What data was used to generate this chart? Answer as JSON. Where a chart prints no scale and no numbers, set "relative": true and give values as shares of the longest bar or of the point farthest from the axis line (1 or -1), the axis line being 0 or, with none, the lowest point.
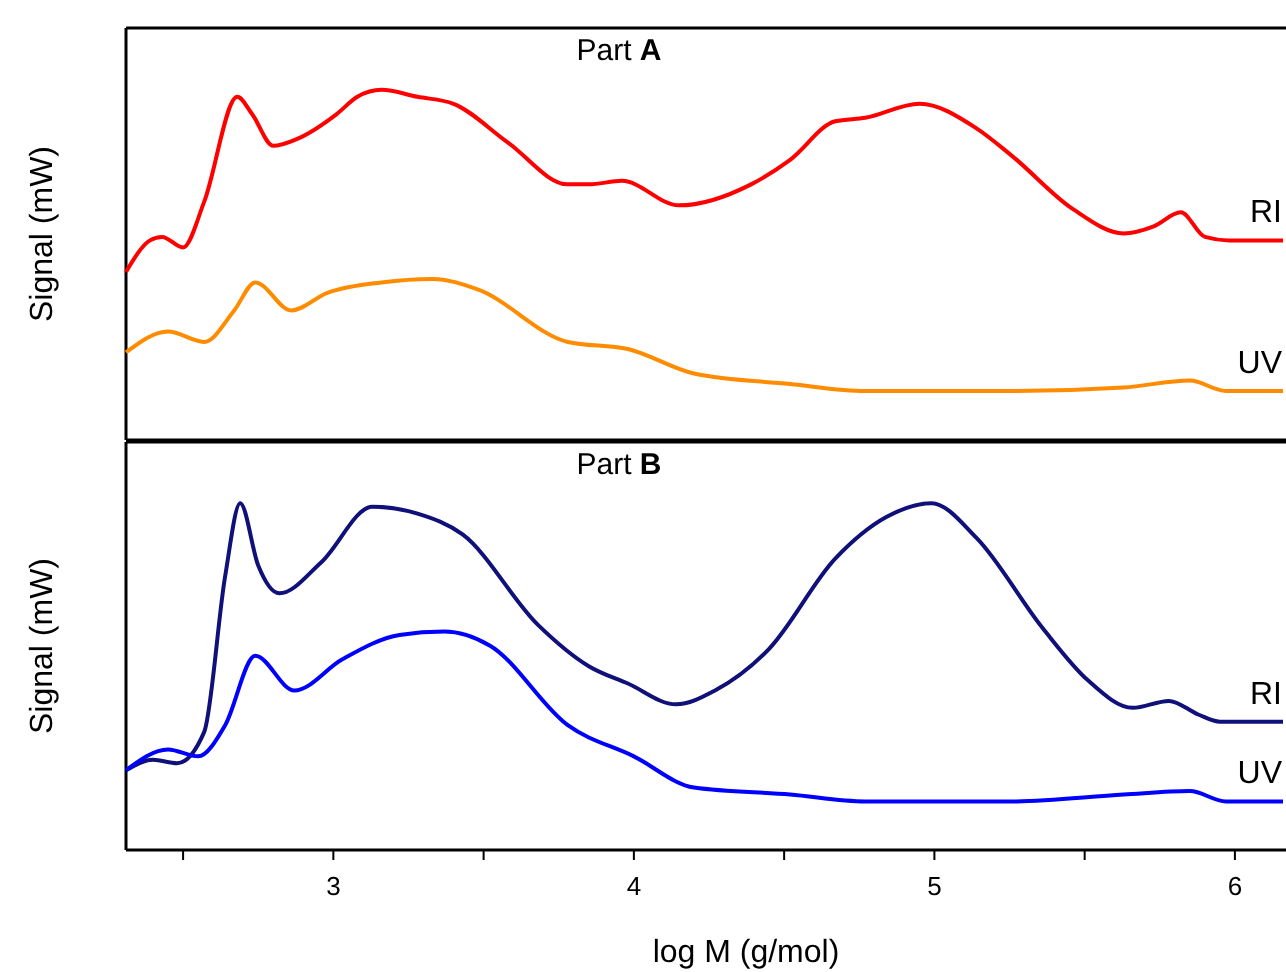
{
  "chart_data": [
    {
      "type": "line",
      "title": "Part A",
      "ylabel": "Signal (mW)",
      "relative": true,
      "xlim": [
        2.31,
        6.17
      ],
      "tick_labels": false,
      "series": [
        {
          "name": "RI",
          "color": "#ff0000",
          "x": [
            2.31,
            2.39,
            2.43,
            2.5,
            2.57,
            2.68,
            2.73,
            2.8,
            2.88,
            3.01,
            3.08,
            3.16,
            3.28,
            3.4,
            3.58,
            3.78,
            3.85,
            3.96,
            4.15,
            4.39,
            4.52,
            4.67,
            4.77,
            4.95,
            5.14,
            5.26,
            5.46,
            5.63,
            5.73,
            5.82,
            5.9,
            5.98,
            6.16
          ],
          "values": [
            0.48,
            0.57,
            0.58,
            0.55,
            0.68,
            0.98,
            0.93,
            0.84,
            0.86,
            0.93,
            0.98,
            1,
            0.98,
            0.96,
            0.85,
            0.73,
            0.73,
            0.74,
            0.67,
            0.73,
            0.8,
            0.91,
            0.92,
            0.96,
            0.89,
            0.81,
            0.66,
            0.59,
            0.61,
            0.65,
            0.58,
            0.57,
            0.57
          ]
        },
        {
          "name": "UV",
          "color": "#ff8c00",
          "x": [
            2.31,
            2.45,
            2.57,
            2.67,
            2.74,
            2.86,
            2.98,
            3.16,
            3.33,
            3.48,
            3.78,
            3.98,
            4.2,
            4.52,
            4.77,
            5.26,
            5.63,
            5.85,
            5.97,
            6.16
          ],
          "values": [
            0.25,
            0.31,
            0.28,
            0.37,
            0.45,
            0.37,
            0.42,
            0.45,
            0.46,
            0.43,
            0.28,
            0.26,
            0.19,
            0.16,
            0.14,
            0.14,
            0.15,
            0.17,
            0.14,
            0.14
          ]
        }
      ]
    },
    {
      "type": "line",
      "title": "Part B",
      "ylabel": "Signal (mW)",
      "xlabel": "log M (g/mol)",
      "relative": true,
      "xlim": [
        2.31,
        6.17
      ],
      "xticks": [
        {
          "value": 2.5,
          "label": null
        },
        3,
        {
          "value": 3.5,
          "label": null
        },
        4,
        {
          "value": 4.5,
          "label": null
        },
        5,
        {
          "value": 5.5,
          "label": null
        },
        6
      ],
      "tick_labels": "x",
      "series": [
        {
          "name": "RI",
          "color": "#10107a",
          "x": [
            2.31,
            2.4,
            2.48,
            2.57,
            2.64,
            2.69,
            2.75,
            2.82,
            2.96,
            3.13,
            3.28,
            3.43,
            3.68,
            3.85,
            3.98,
            4.14,
            4.27,
            4.45,
            4.67,
            4.84,
            4.99,
            5.14,
            5.36,
            5.51,
            5.66,
            5.78,
            5.88,
            5.95,
            6.16
          ],
          "values": [
            0.23,
            0.26,
            0.25,
            0.34,
            0.79,
            1,
            0.82,
            0.74,
            0.83,
            0.99,
            0.97,
            0.91,
            0.65,
            0.53,
            0.48,
            0.42,
            0.46,
            0.58,
            0.84,
            0.96,
            1,
            0.9,
            0.64,
            0.49,
            0.41,
            0.43,
            0.39,
            0.37,
            0.37
          ]
        },
        {
          "name": "UV",
          "color": "#0000ff",
          "x": [
            2.31,
            2.45,
            2.55,
            2.64,
            2.74,
            2.87,
            3.03,
            3.22,
            3.37,
            3.52,
            3.78,
            4.0,
            4.2,
            4.52,
            4.77,
            5.26,
            5.63,
            5.85,
            5.97,
            6.16
          ],
          "values": [
            0.23,
            0.29,
            0.27,
            0.36,
            0.56,
            0.46,
            0.55,
            0.62,
            0.63,
            0.59,
            0.36,
            0.27,
            0.18,
            0.16,
            0.14,
            0.14,
            0.16,
            0.17,
            0.14,
            0.14
          ]
        }
      ]
    }
  ]
}
